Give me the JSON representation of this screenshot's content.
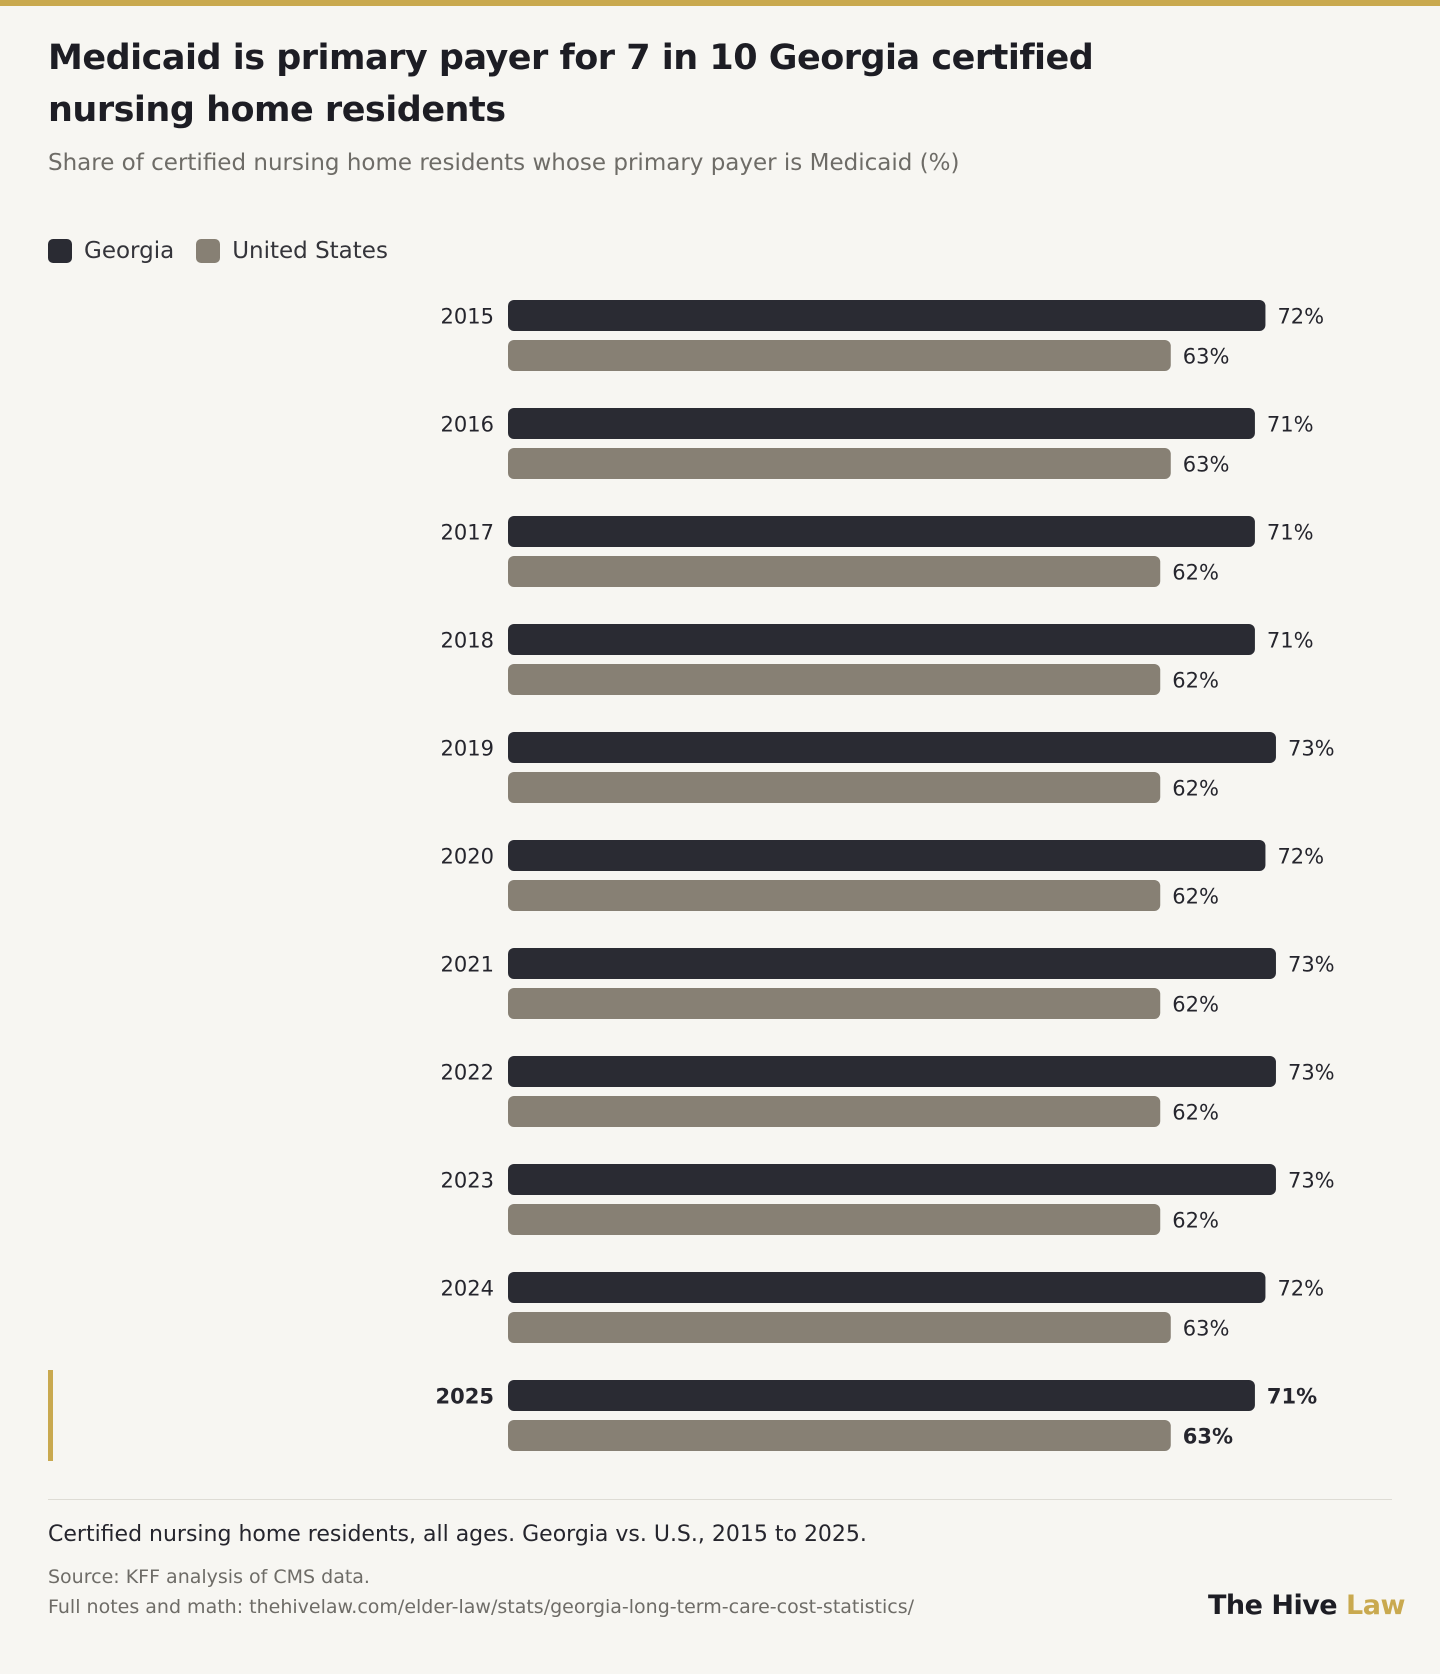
{
  "header": {
    "title": "Medicaid is primary payer for 7 in 10 Georgia certified nursing home residents",
    "subtitle": "Share of certified nursing home residents whose primary payer is Medicaid (%)"
  },
  "legend": {
    "items": [
      {
        "label": "Georgia",
        "color": "#2a2b33"
      },
      {
        "label": "United States",
        "color": "#878074"
      }
    ]
  },
  "chart_data": {
    "type": "bar",
    "orientation": "horizontal",
    "categories": [
      "2015",
      "2016",
      "2017",
      "2018",
      "2019",
      "2020",
      "2021",
      "2022",
      "2023",
      "2024",
      "2025"
    ],
    "series": [
      {
        "name": "Georgia",
        "color": "#2a2b33",
        "values": [
          72,
          71,
          71,
          71,
          73,
          72,
          73,
          73,
          73,
          72,
          71
        ],
        "labels": [
          "72%",
          "71%",
          "71%",
          "71%",
          "73%",
          "72%",
          "73%",
          "73%",
          "73%",
          "72%",
          "71%"
        ]
      },
      {
        "name": "United States",
        "color": "#878074",
        "values": [
          63,
          63,
          62,
          62,
          62,
          62,
          62,
          62,
          62,
          63,
          63
        ],
        "labels": [
          "63%",
          "63%",
          "62%",
          "62%",
          "62%",
          "62%",
          "62%",
          "62%",
          "62%",
          "63%",
          "63%"
        ]
      }
    ],
    "highlight_category": "2025",
    "highlight_color": "#c9a94f",
    "xlim": [
      0,
      100
    ],
    "grid": false,
    "legend_position": "top-left"
  },
  "footer": {
    "note": "Certified nursing home residents, all ages. Georgia vs. U.S., 2015 to 2025.",
    "source": "Source: KFF analysis of CMS data.",
    "notes_link": "Full notes and math: thehivelaw.com/elder-law/stats/georgia-long-term-care-cost-statistics/",
    "brand_main": "The Hive",
    "brand_accent": "Law"
  }
}
